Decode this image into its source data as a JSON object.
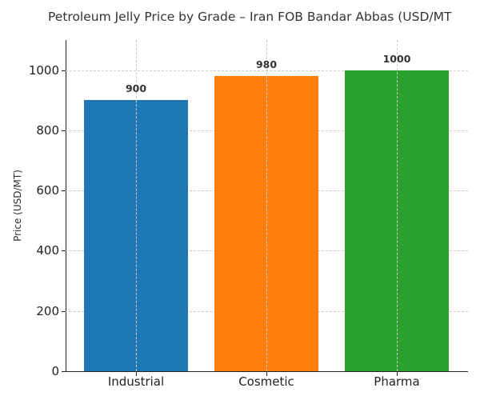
{
  "chart_data": {
    "type": "bar",
    "title": "Petroleum Jelly Price by Grade – Iran FOB Bandar Abbas (USD/MT",
    "xlabel": "",
    "ylabel": "Price (USD/MT)",
    "categories": [
      "Industrial",
      "Cosmetic",
      "Pharma"
    ],
    "values": [
      900,
      980,
      1000
    ],
    "data_labels": [
      "900",
      "980",
      "1000"
    ],
    "colors": [
      "#1f77b4",
      "#ff7f0e",
      "#2ca02c"
    ],
    "ylim": [
      0,
      1100
    ],
    "yticks": [
      0,
      200,
      400,
      600,
      800,
      1000
    ],
    "ytick_labels": [
      "0",
      "200",
      "400",
      "600",
      "800",
      "1000"
    ],
    "grid": true,
    "legend": null
  }
}
